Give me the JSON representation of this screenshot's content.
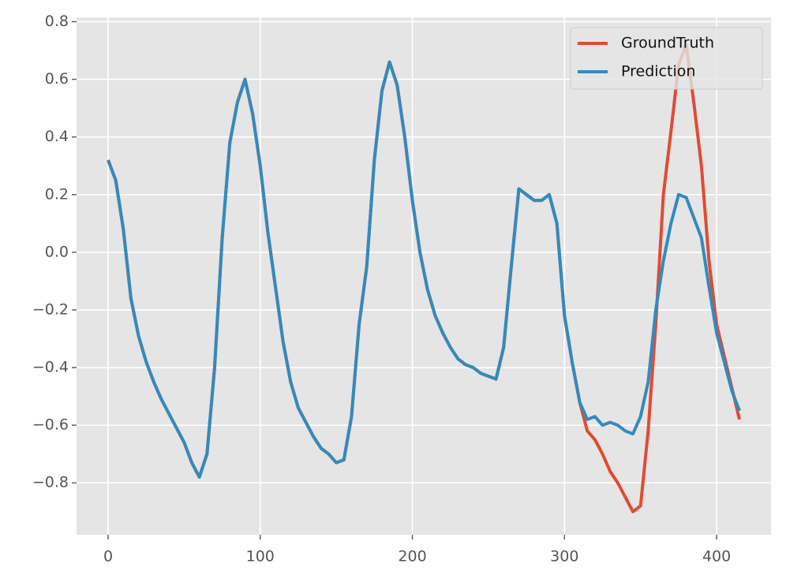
{
  "chart_data": {
    "type": "line",
    "x": [
      0,
      5,
      10,
      15,
      20,
      25,
      30,
      35,
      40,
      45,
      50,
      55,
      60,
      65,
      70,
      75,
      80,
      85,
      90,
      95,
      100,
      105,
      110,
      115,
      120,
      125,
      130,
      135,
      140,
      145,
      150,
      155,
      160,
      165,
      170,
      175,
      180,
      185,
      190,
      195,
      200,
      205,
      210,
      215,
      220,
      225,
      230,
      235,
      240,
      245,
      250,
      255,
      260,
      265,
      270,
      275,
      280,
      285,
      290,
      295,
      300,
      305,
      310,
      315,
      320,
      325,
      330,
      335,
      340,
      345,
      350,
      355,
      360,
      365,
      370,
      375,
      380,
      385,
      390,
      395,
      400,
      405,
      410,
      415
    ],
    "series": [
      {
        "name": "GroundTruth",
        "color": "#E24A33",
        "values": [
          0.32,
          0.25,
          0.08,
          -0.16,
          -0.29,
          -0.38,
          -0.45,
          -0.51,
          -0.56,
          -0.61,
          -0.66,
          -0.73,
          -0.78,
          -0.7,
          -0.4,
          0.05,
          0.38,
          0.52,
          0.6,
          0.48,
          0.3,
          0.07,
          -0.12,
          -0.31,
          -0.45,
          -0.54,
          -0.59,
          -0.64,
          -0.68,
          -0.7,
          -0.73,
          -0.72,
          -0.57,
          -0.25,
          -0.05,
          0.32,
          0.56,
          0.66,
          0.58,
          0.4,
          0.18,
          0.0,
          -0.13,
          -0.22,
          -0.28,
          -0.33,
          -0.37,
          -0.39,
          -0.4,
          -0.42,
          -0.43,
          -0.44,
          -0.33,
          -0.05,
          0.22,
          0.2,
          0.18,
          0.18,
          0.2,
          0.1,
          -0.22,
          -0.38,
          -0.52,
          -0.62,
          -0.65,
          -0.7,
          -0.76,
          -0.8,
          -0.85,
          -0.9,
          -0.88,
          -0.62,
          -0.25,
          0.2,
          0.42,
          0.65,
          0.72,
          0.52,
          0.3,
          -0.03,
          -0.25,
          -0.36,
          -0.47,
          -0.58
        ]
      },
      {
        "name": "Prediction",
        "color": "#348ABD",
        "values": [
          0.32,
          0.25,
          0.08,
          -0.16,
          -0.29,
          -0.38,
          -0.45,
          -0.51,
          -0.56,
          -0.61,
          -0.66,
          -0.73,
          -0.78,
          -0.7,
          -0.4,
          0.05,
          0.38,
          0.52,
          0.6,
          0.48,
          0.3,
          0.07,
          -0.12,
          -0.31,
          -0.45,
          -0.54,
          -0.59,
          -0.64,
          -0.68,
          -0.7,
          -0.73,
          -0.72,
          -0.57,
          -0.25,
          -0.05,
          0.32,
          0.56,
          0.66,
          0.58,
          0.4,
          0.18,
          0.0,
          -0.13,
          -0.22,
          -0.28,
          -0.33,
          -0.37,
          -0.39,
          -0.4,
          -0.42,
          -0.43,
          -0.44,
          -0.33,
          -0.05,
          0.22,
          0.2,
          0.18,
          0.18,
          0.2,
          0.1,
          -0.22,
          -0.38,
          -0.52,
          -0.58,
          -0.57,
          -0.6,
          -0.59,
          -0.6,
          -0.62,
          -0.63,
          -0.57,
          -0.45,
          -0.2,
          -0.03,
          0.1,
          0.2,
          0.19,
          0.12,
          0.05,
          -0.12,
          -0.28,
          -0.38,
          -0.48,
          -0.55
        ]
      }
    ],
    "xlim": [
      -20.75,
      435.75
    ],
    "ylim": [
      -0.98,
      0.815
    ],
    "xticks": [
      0,
      100,
      200,
      300,
      400
    ],
    "yticks": [
      {
        "value": -0.8,
        "label": "−0.8"
      },
      {
        "value": -0.6,
        "label": "−0.6"
      },
      {
        "value": -0.4,
        "label": "−0.4"
      },
      {
        "value": -0.2,
        "label": "−0.2"
      },
      {
        "value": 0,
        "label": "0.0"
      },
      0.2,
      0.4,
      0.6,
      0.8
    ],
    "grid": true,
    "legend": "upper right"
  }
}
